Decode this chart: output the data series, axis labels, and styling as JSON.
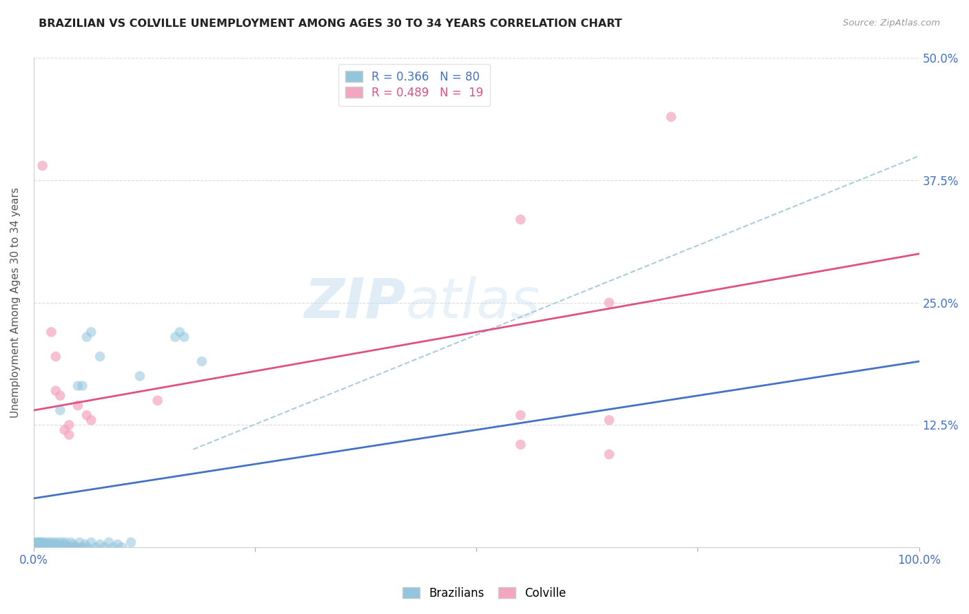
{
  "title": "BRAZILIAN VS COLVILLE UNEMPLOYMENT AMONG AGES 30 TO 34 YEARS CORRELATION CHART",
  "source": "Source: ZipAtlas.com",
  "ylabel": "Unemployment Among Ages 30 to 34 years",
  "xlim": [
    0.0,
    1.0
  ],
  "ylim": [
    0.0,
    0.5
  ],
  "ytick_labels": [
    "12.5%",
    "25.0%",
    "37.5%",
    "50.0%"
  ],
  "yticks": [
    0.125,
    0.25,
    0.375,
    0.5
  ],
  "watermark_text": "ZIP",
  "watermark_text2": "atlas",
  "brazil_color": "#92c5de",
  "colville_color": "#f4a6c0",
  "brazil_line_color": "#4472c4",
  "colville_line_color": "#e05080",
  "dashed_line_color": "#aaccdd",
  "brazil_points": [
    [
      0.0,
      0.0
    ],
    [
      0.001,
      0.0
    ],
    [
      0.002,
      0.0
    ],
    [
      0.002,
      0.005
    ],
    [
      0.003,
      0.0
    ],
    [
      0.003,
      0.002
    ],
    [
      0.003,
      0.005
    ],
    [
      0.004,
      0.0
    ],
    [
      0.004,
      0.003
    ],
    [
      0.005,
      0.0
    ],
    [
      0.005,
      0.002
    ],
    [
      0.005,
      0.005
    ],
    [
      0.006,
      0.0
    ],
    [
      0.006,
      0.003
    ],
    [
      0.007,
      0.0
    ],
    [
      0.007,
      0.005
    ],
    [
      0.008,
      0.0
    ],
    [
      0.008,
      0.005
    ],
    [
      0.009,
      0.0
    ],
    [
      0.009,
      0.003
    ],
    [
      0.01,
      0.0
    ],
    [
      0.01,
      0.002
    ],
    [
      0.01,
      0.005
    ],
    [
      0.011,
      0.0
    ],
    [
      0.012,
      0.0
    ],
    [
      0.012,
      0.005
    ],
    [
      0.013,
      0.0
    ],
    [
      0.014,
      0.003
    ],
    [
      0.015,
      0.0
    ],
    [
      0.015,
      0.005
    ],
    [
      0.016,
      0.0
    ],
    [
      0.017,
      0.0
    ],
    [
      0.018,
      0.005
    ],
    [
      0.019,
      0.0
    ],
    [
      0.02,
      0.0
    ],
    [
      0.02,
      0.003
    ],
    [
      0.021,
      0.005
    ],
    [
      0.022,
      0.0
    ],
    [
      0.023,
      0.0
    ],
    [
      0.024,
      0.005
    ],
    [
      0.025,
      0.0
    ],
    [
      0.026,
      0.003
    ],
    [
      0.027,
      0.0
    ],
    [
      0.028,
      0.005
    ],
    [
      0.03,
      0.0
    ],
    [
      0.032,
      0.005
    ],
    [
      0.033,
      0.0
    ],
    [
      0.035,
      0.003
    ],
    [
      0.036,
      0.005
    ],
    [
      0.038,
      0.0
    ],
    [
      0.04,
      0.0
    ],
    [
      0.042,
      0.005
    ],
    [
      0.043,
      0.0
    ],
    [
      0.045,
      0.003
    ],
    [
      0.047,
      0.0
    ],
    [
      0.05,
      0.0
    ],
    [
      0.052,
      0.005
    ],
    [
      0.055,
      0.0
    ],
    [
      0.058,
      0.003
    ],
    [
      0.06,
      0.0
    ],
    [
      0.065,
      0.005
    ],
    [
      0.07,
      0.0
    ],
    [
      0.075,
      0.003
    ],
    [
      0.08,
      0.0
    ],
    [
      0.085,
      0.005
    ],
    [
      0.09,
      0.0
    ],
    [
      0.095,
      0.003
    ],
    [
      0.1,
      0.0
    ],
    [
      0.11,
      0.005
    ],
    [
      0.16,
      0.215
    ],
    [
      0.165,
      0.22
    ],
    [
      0.17,
      0.215
    ],
    [
      0.19,
      0.19
    ],
    [
      0.06,
      0.215
    ],
    [
      0.065,
      0.22
    ],
    [
      0.075,
      0.195
    ],
    [
      0.12,
      0.175
    ],
    [
      0.05,
      0.165
    ],
    [
      0.055,
      0.165
    ],
    [
      0.03,
      0.14
    ]
  ],
  "colville_points": [
    [
      0.01,
      0.39
    ],
    [
      0.02,
      0.22
    ],
    [
      0.025,
      0.195
    ],
    [
      0.03,
      0.155
    ],
    [
      0.035,
      0.12
    ],
    [
      0.04,
      0.115
    ],
    [
      0.04,
      0.125
    ],
    [
      0.025,
      0.16
    ],
    [
      0.05,
      0.145
    ],
    [
      0.06,
      0.135
    ],
    [
      0.065,
      0.13
    ],
    [
      0.14,
      0.15
    ],
    [
      0.55,
      0.335
    ],
    [
      0.55,
      0.135
    ],
    [
      0.55,
      0.105
    ],
    [
      0.65,
      0.25
    ],
    [
      0.72,
      0.44
    ],
    [
      0.65,
      0.13
    ],
    [
      0.65,
      0.095
    ]
  ],
  "brazil_trend": [
    0.0,
    0.05,
    1.0,
    0.19
  ],
  "colville_trend": [
    0.0,
    0.14,
    1.0,
    0.3
  ],
  "dashed_trend": [
    0.18,
    0.1,
    1.0,
    0.4
  ],
  "background_color": "#ffffff",
  "grid_color": "#cccccc",
  "title_color": "#222222",
  "axis_label_color": "#555555",
  "tick_label_color": "#4472c4"
}
